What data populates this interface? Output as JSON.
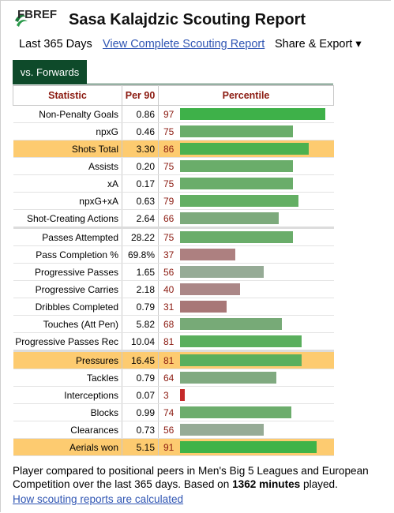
{
  "header": {
    "logo_text": "FBREF",
    "title": "Sasa Kalajdzic Scouting Report"
  },
  "subnav": {
    "period": "Last 365 Days",
    "complete_link": "View Complete Scouting Report",
    "share_label": "Share & Export ▾"
  },
  "tabs": [
    {
      "label": "vs. Forwards"
    }
  ],
  "table": {
    "headers": [
      "Statistic",
      "Per 90",
      "Percentile"
    ],
    "rows": [
      {
        "stat": "Non-Penalty Goals",
        "per90": "0.86",
        "pct": "97",
        "pct_value": 97,
        "color": "#3eb149",
        "highlight": false,
        "sep": false
      },
      {
        "stat": "npxG",
        "per90": "0.46",
        "pct": "75",
        "pct_value": 75,
        "color": "#6aad6a",
        "highlight": false,
        "sep": false
      },
      {
        "stat": "Shots Total",
        "per90": "3.30",
        "pct": "86",
        "pct_value": 86,
        "color": "#4bb14f",
        "highlight": true,
        "sep": false
      },
      {
        "stat": "Assists",
        "per90": "0.20",
        "pct": "75",
        "pct_value": 75,
        "color": "#6aad6a",
        "highlight": false,
        "sep": false
      },
      {
        "stat": "xA",
        "per90": "0.17",
        "pct": "75",
        "pct_value": 75,
        "color": "#6aad6a",
        "highlight": false,
        "sep": false
      },
      {
        "stat": "npxG+xA",
        "per90": "0.63",
        "pct": "79",
        "pct_value": 79,
        "color": "#63af63",
        "highlight": false,
        "sep": false
      },
      {
        "stat": "Shot-Creating Actions",
        "per90": "2.64",
        "pct": "66",
        "pct_value": 66,
        "color": "#7daa7c",
        "highlight": false,
        "sep": false
      },
      {
        "stat": "Passes Attempted",
        "per90": "28.22",
        "pct": "75",
        "pct_value": 75,
        "color": "#6aad6a",
        "highlight": false,
        "sep": true
      },
      {
        "stat": "Pass Completion %",
        "per90": "69.8%",
        "pct": "37",
        "pct_value": 37,
        "color": "#ad8080",
        "highlight": false,
        "sep": false
      },
      {
        "stat": "Progressive Passes",
        "per90": "1.65",
        "pct": "56",
        "pct_value": 56,
        "color": "#96ab96",
        "highlight": false,
        "sep": false
      },
      {
        "stat": "Progressive Carries",
        "per90": "2.18",
        "pct": "40",
        "pct_value": 40,
        "color": "#ab8787",
        "highlight": false,
        "sep": false
      },
      {
        "stat": "Dribbles Completed",
        "per90": "0.79",
        "pct": "31",
        "pct_value": 31,
        "color": "#a87777",
        "highlight": false,
        "sep": false
      },
      {
        "stat": "Touches (Att Pen)",
        "per90": "5.82",
        "pct": "68",
        "pct_value": 68,
        "color": "#77aa77",
        "highlight": false,
        "sep": false
      },
      {
        "stat": "Progressive Passes Rec",
        "per90": "10.04",
        "pct": "81",
        "pct_value": 81,
        "color": "#5aaf5d",
        "highlight": false,
        "sep": false
      },
      {
        "stat": "Pressures",
        "per90": "16.45",
        "pct": "81",
        "pct_value": 81,
        "color": "#5aaf5d",
        "highlight": true,
        "sep": true
      },
      {
        "stat": "Tackles",
        "per90": "0.79",
        "pct": "64",
        "pct_value": 64,
        "color": "#80aa80",
        "highlight": false,
        "sep": false
      },
      {
        "stat": "Interceptions",
        "per90": "0.07",
        "pct": "3",
        "pct_value": 3,
        "color": "#c52a2a",
        "highlight": false,
        "sep": false
      },
      {
        "stat": "Blocks",
        "per90": "0.99",
        "pct": "74",
        "pct_value": 74,
        "color": "#6cad6c",
        "highlight": false,
        "sep": false
      },
      {
        "stat": "Clearances",
        "per90": "0.73",
        "pct": "56",
        "pct_value": 56,
        "color": "#96ab96",
        "highlight": false,
        "sep": false
      },
      {
        "stat": "Aerials won",
        "per90": "5.15",
        "pct": "91",
        "pct_value": 91,
        "color": "#3fb348",
        "highlight": true,
        "sep": false
      }
    ]
  },
  "footer": {
    "description_pre": "Player compared to positional peers in Men's Big 5 Leagues and European Competition over the last 365 days. Based on ",
    "minutes": "1362 minutes",
    "description_post": " played.",
    "link": "How scouting reports are calculated"
  }
}
